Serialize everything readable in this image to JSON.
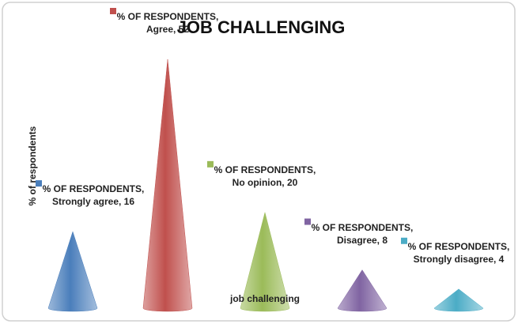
{
  "chart_data": {
    "type": "bar",
    "title": "JOB CHALLENGING",
    "ylabel": "% of respondents",
    "xlabel": "job challenging",
    "series": [
      {
        "name": "% OF RESPONDENTS",
        "colors": [
          "#4a7ebb",
          "#c0504d",
          "#9bbb59",
          "#8064a2",
          "#4bacc6"
        ],
        "values": [
          16,
          52,
          20,
          8,
          4
        ],
        "value_labels": [
          "% OF RESPONDENTS, Strongly agree, 16",
          "% OF RESPONDENTS, Agree, 52",
          "% OF RESPONDENTS, No opinion, 20",
          "% OF RESPONDENTS, Disagree, 8",
          "% OF RESPONDENTS, Strongly disagree, 4"
        ]
      }
    ],
    "categories": [
      "Strongly agree",
      "Agree",
      "No opinion",
      "Disagree",
      "Strongly disagree"
    ]
  }
}
